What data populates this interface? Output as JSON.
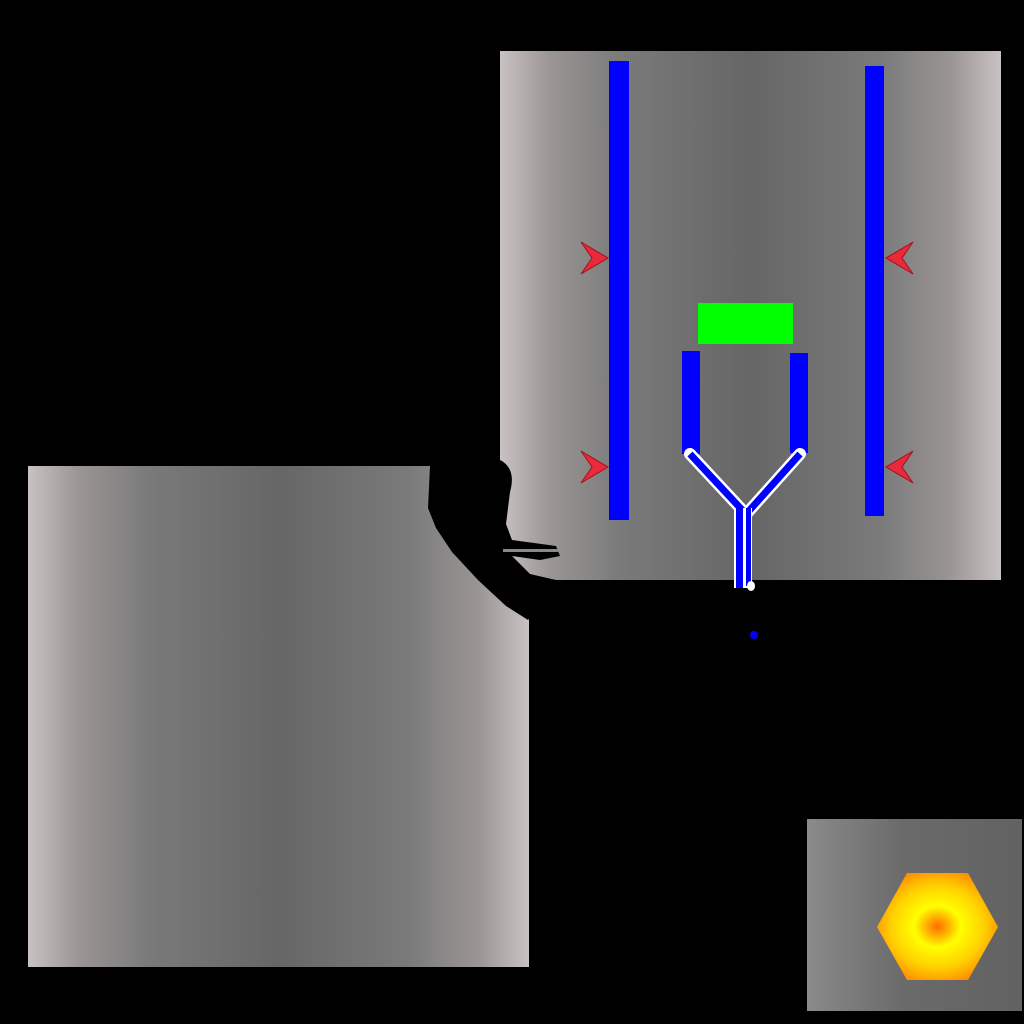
{
  "scene": {
    "background_color": "#000000",
    "wall_color": "#0000ff",
    "pad_color": "#00ff00",
    "spike_color": "#e82a3a",
    "player_color": "#000000",
    "projectile_color": "#0000ff",
    "goal_colors": [
      "#ff7a00",
      "#ffd200",
      "#ffff00"
    ]
  },
  "objects": {
    "rooms": [
      "room-left",
      "room-right",
      "room-small"
    ],
    "pillars": [
      "pillar-left",
      "pillar-right"
    ],
    "spikes": [
      "spike-left-upper",
      "spike-left-lower",
      "spike-right-upper",
      "spike-right-lower"
    ],
    "funnel": "blue-funnel",
    "pad": "green-pad",
    "player": "player-silhouette",
    "projectile": "blue-dot-projectile",
    "goal": "hexagon-goal-icon"
  }
}
